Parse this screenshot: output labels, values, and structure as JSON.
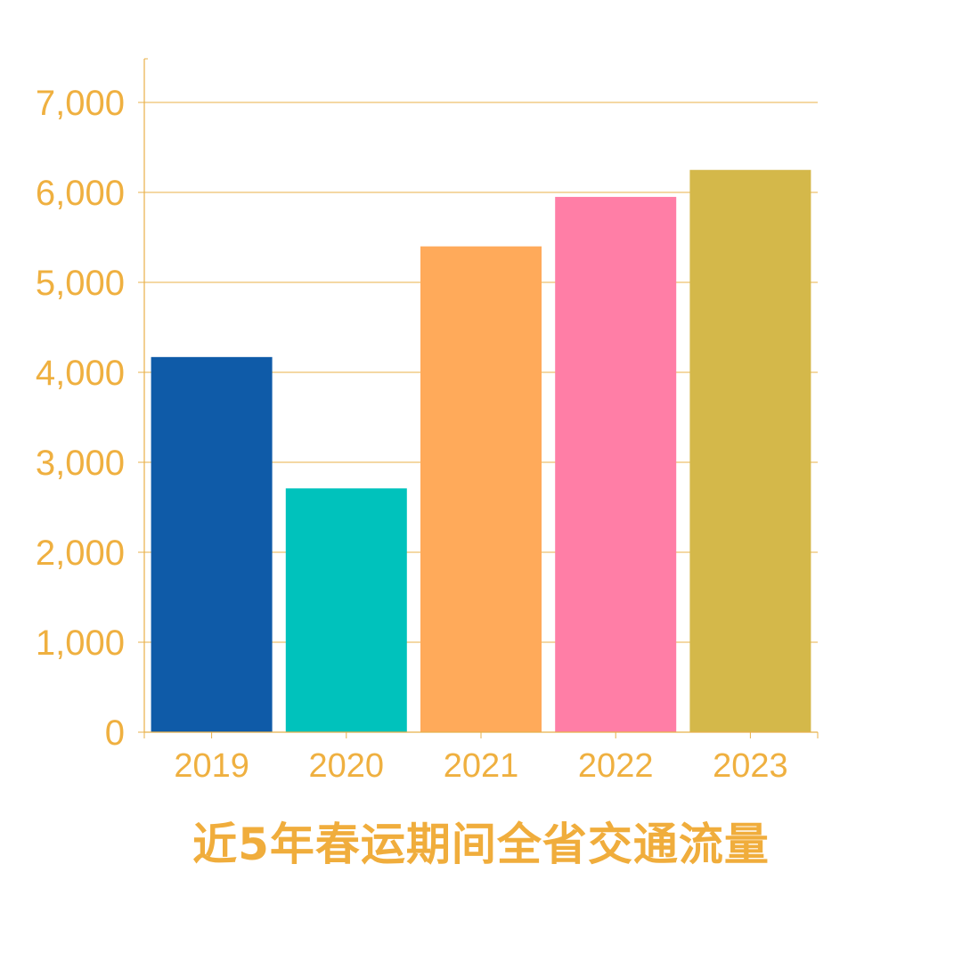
{
  "colors": {
    "axis": "#e8b04a",
    "tick_text": "#efb040",
    "title": "#f0ad3c",
    "bars": [
      "#0f5ba8",
      "#00c2bc",
      "#ffaa5a",
      "#ff7ea6",
      "#d4b84a"
    ]
  },
  "chart_data": {
    "type": "bar",
    "title": "近5年春运期间全省交通流量",
    "xlabel": "",
    "ylabel": "",
    "categories": [
      "2019",
      "2020",
      "2021",
      "2022",
      "2023"
    ],
    "values": [
      4170,
      2710,
      5400,
      5950,
      6250
    ],
    "ylim": [
      0,
      7000
    ],
    "yticks": [
      0,
      1000,
      2000,
      3000,
      4000,
      5000,
      6000,
      7000
    ],
    "ytick_labels": [
      "0",
      "1,000",
      "2,000",
      "3,000",
      "4,000",
      "5,000",
      "6,000",
      "7,000"
    ],
    "grid": true,
    "legend": "none"
  }
}
